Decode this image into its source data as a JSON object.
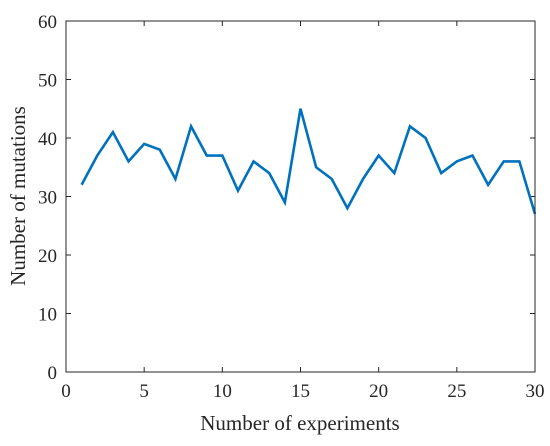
{
  "chart_data": {
    "type": "line",
    "title": "",
    "xlabel": "Number of experiments",
    "ylabel": "Number of mutations",
    "xlim": [
      0,
      30
    ],
    "ylim": [
      0,
      60
    ],
    "xticks": [
      0,
      5,
      10,
      15,
      20,
      25,
      30
    ],
    "yticks": [
      0,
      10,
      20,
      30,
      40,
      50,
      60
    ],
    "grid": false,
    "legend": "none",
    "series": [
      {
        "color": "#0072BD",
        "x": [
          1,
          2,
          3,
          4,
          5,
          6,
          7,
          8,
          9,
          10,
          11,
          12,
          13,
          14,
          15,
          16,
          17,
          18,
          19,
          20,
          21,
          22,
          23,
          24,
          25,
          26,
          27,
          28,
          29,
          30
        ],
        "y": [
          32,
          37,
          41,
          36,
          39,
          38,
          33,
          42,
          37,
          37,
          31,
          36,
          34,
          29,
          45,
          35,
          33,
          28,
          33,
          37,
          34,
          42,
          40,
          34,
          36,
          37,
          32,
          36,
          36,
          27
        ]
      }
    ]
  }
}
